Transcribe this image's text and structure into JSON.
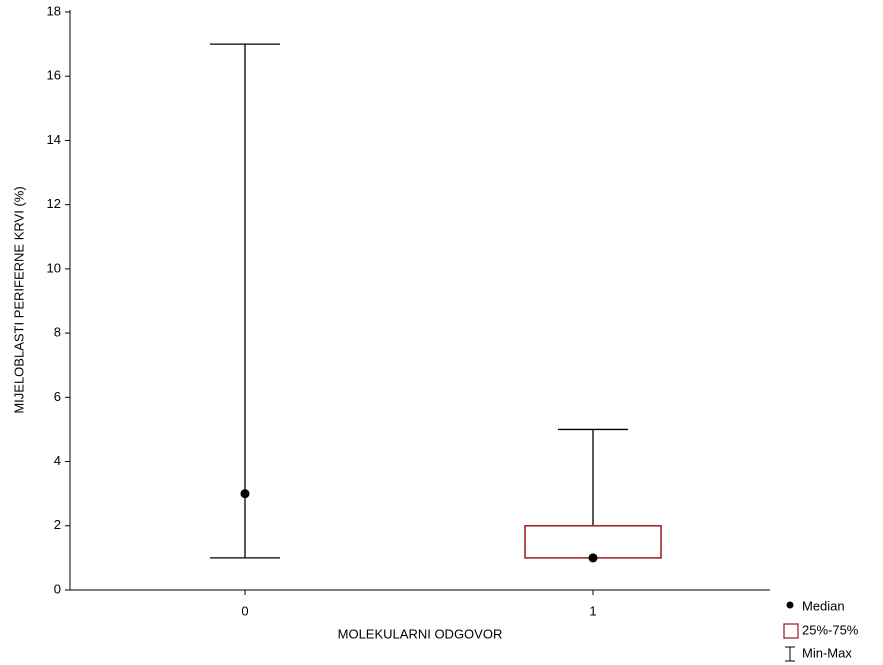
{
  "chart_data": {
    "type": "box",
    "categories": [
      "0",
      "1"
    ],
    "min": [
      1,
      1
    ],
    "q1": [
      3,
      1
    ],
    "median": [
      3,
      1
    ],
    "q3": [
      3,
      2
    ],
    "max": [
      17,
      5
    ],
    "box_color": "#a0282d",
    "whisker_color": "#000000",
    "xlabel": "MOLEKULARNI ODGOVOR",
    "ylabel": "MIJELOBLASTI PERIFERNE KRVI (%)",
    "ylim": [
      0,
      18
    ],
    "yticks": [
      0,
      2,
      4,
      6,
      8,
      10,
      12,
      14,
      16,
      18
    ],
    "legend": [
      "Median",
      "25%-75%",
      "Min-Max"
    ]
  }
}
